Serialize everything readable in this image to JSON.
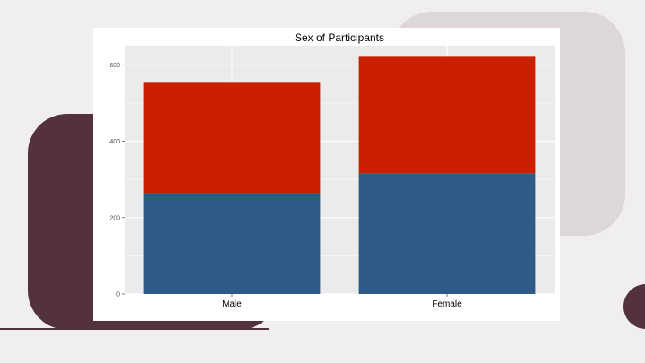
{
  "colors": {
    "background": "#f1efee",
    "deco_light": "#ddd8d7",
    "deco_dark": "#53323b",
    "panel": "#ebebeb",
    "grid": "#ffffff",
    "series_bottom": "#2e5a87",
    "series_top": "#cc1f00"
  },
  "chart_data": {
    "type": "bar",
    "stacked": true,
    "title": "Sex of Participants",
    "xlabel": "",
    "ylabel": "",
    "categories": [
      "Male",
      "Female"
    ],
    "series": [
      {
        "color": "#2e5a87",
        "values": [
          263,
          316
        ]
      },
      {
        "color": "#cc1f00",
        "values": [
          290,
          305
        ]
      }
    ],
    "ylim": [
      0,
      650
    ],
    "y_ticks": [
      0,
      200,
      400,
      600
    ],
    "grid": true,
    "legend": "none"
  }
}
